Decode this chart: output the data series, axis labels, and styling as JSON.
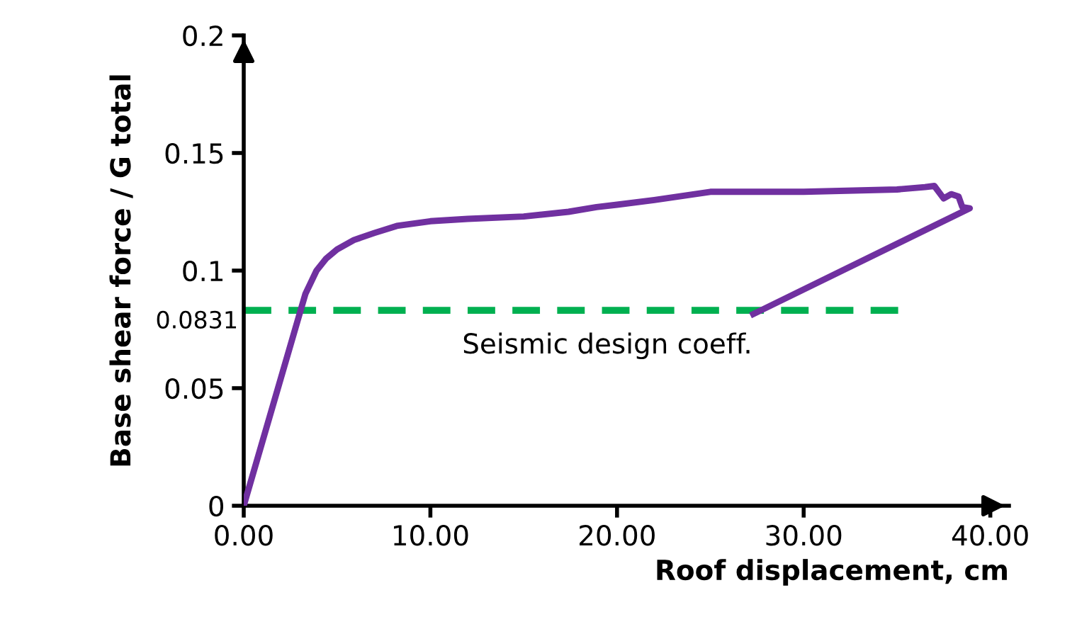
{
  "chart_data": {
    "type": "line",
    "xlabel": "Roof displacement, cm",
    "ylabel": "Base shear force / G total",
    "series": [
      {
        "color": "#7030a0",
        "x": [
          0,
          3.3,
          3.9,
          4.4,
          5.0,
          5.9,
          7.0,
          8.2,
          10,
          12,
          15,
          17.4,
          18.9,
          20,
          22,
          25,
          30,
          35,
          36.5,
          37.0,
          37.5,
          37.9,
          38.3,
          38.5,
          38.9,
          27.3
        ],
        "values": [
          0,
          0.09,
          0.1,
          0.105,
          0.109,
          0.113,
          0.116,
          0.119,
          0.121,
          0.122,
          0.123,
          0.125,
          0.127,
          0.128,
          0.13,
          0.1335,
          0.1335,
          0.1345,
          0.1355,
          0.136,
          0.1307,
          0.1325,
          0.1315,
          0.127,
          0.1265,
          0.0815
        ]
      }
    ],
    "xlim": [
      0,
      41
    ],
    "ylim": [
      0,
      0.2
    ],
    "xticks": [
      {
        "value": 0,
        "label": "0.00"
      },
      {
        "value": 10,
        "label": "10.00"
      },
      {
        "value": 20,
        "label": "20.00"
      },
      {
        "value": 30,
        "label": "30.00"
      },
      {
        "value": 40,
        "label": "40.00"
      }
    ],
    "yticks": [
      0,
      0.05,
      0.1,
      0.15,
      0.2
    ],
    "ref_lines": [
      {
        "axis": "y",
        "value": 0.0831,
        "label": "0.0831",
        "color": "#00b050",
        "line_style": "dashed"
      }
    ],
    "annotations": [
      "Seismic design coeff."
    ],
    "marker": "none",
    "line_style": "solid",
    "grid": false,
    "legend": false
  }
}
